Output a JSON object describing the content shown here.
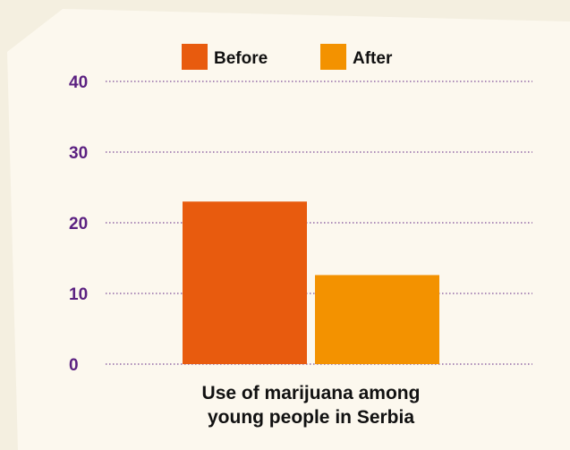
{
  "chart_data": {
    "type": "bar",
    "categories": [
      "Use of marijuana among young people in Serbia"
    ],
    "category_label_lines": [
      "Use of marijuana among",
      "young people in Serbia"
    ],
    "series": [
      {
        "name": "Before",
        "values": [
          23
        ],
        "color": "#e85b0e"
      },
      {
        "name": "After",
        "values": [
          12.6
        ],
        "color": "#f39200"
      }
    ],
    "ylim": [
      0,
      40
    ],
    "yticks": [
      0,
      10,
      20,
      30,
      40
    ],
    "grid": true,
    "legend_position": "top-center",
    "title": "",
    "xlabel": "",
    "ylabel": ""
  },
  "colors": {
    "background": "#f4efe0",
    "paper": "#fcf8ee",
    "tick_label": "#5b2181",
    "grid": "#5b2181",
    "text": "#111111"
  }
}
